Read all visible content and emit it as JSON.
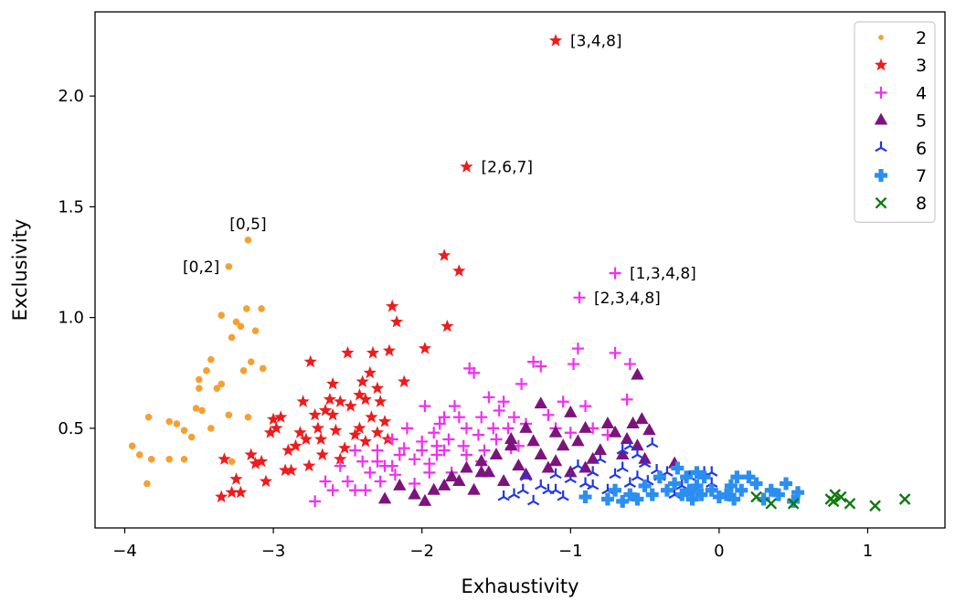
{
  "chart_data": {
    "type": "scatter",
    "xlabel": "Exhaustivity",
    "ylabel": "Exclusivity",
    "xlim": [
      -4.2,
      1.52
    ],
    "ylim": [
      0.05,
      2.38
    ],
    "x_ticks": [
      -4,
      -3,
      -2,
      -1,
      0,
      1
    ],
    "x_tick_labels": [
      "−4",
      "−3",
      "−2",
      "−1",
      "0",
      "1"
    ],
    "y_ticks": [
      0.5,
      1.0,
      1.5,
      2.0
    ],
    "y_tick_labels": [
      "0.5",
      "1.0",
      "1.5",
      "2.0"
    ],
    "grid": false,
    "legend_position": "top-right",
    "series": [
      {
        "name": "2",
        "marker": "circle",
        "color": "#f4a033",
        "points": [
          [
            -3.95,
            0.42
          ],
          [
            -3.9,
            0.38
          ],
          [
            -3.85,
            0.25
          ],
          [
            -3.82,
            0.36
          ],
          [
            -3.84,
            0.55
          ],
          [
            -3.7,
            0.36
          ],
          [
            -3.65,
            0.52
          ],
          [
            -3.6,
            0.36
          ],
          [
            -3.6,
            0.49
          ],
          [
            -3.55,
            0.46
          ],
          [
            -3.52,
            0.59
          ],
          [
            -3.5,
            0.68
          ],
          [
            -3.5,
            0.72
          ],
          [
            -3.48,
            0.58
          ],
          [
            -3.45,
            0.76
          ],
          [
            -3.42,
            0.81
          ],
          [
            -3.42,
            0.5
          ],
          [
            -3.38,
            0.68
          ],
          [
            -3.35,
            0.7
          ],
          [
            -3.35,
            1.01
          ],
          [
            -3.3,
            1.23
          ],
          [
            -3.28,
            0.91
          ],
          [
            -3.25,
            0.98
          ],
          [
            -3.22,
            0.96
          ],
          [
            -3.2,
            0.76
          ],
          [
            -3.17,
            0.55
          ],
          [
            -3.18,
            1.04
          ],
          [
            -3.15,
            0.8
          ],
          [
            -3.12,
            0.94
          ],
          [
            -3.08,
            1.04
          ],
          [
            -3.07,
            0.77
          ],
          [
            -3.17,
            1.35
          ],
          [
            -3.28,
            0.35
          ],
          [
            -3.3,
            0.56
          ],
          [
            -3.7,
            0.53
          ]
        ]
      },
      {
        "name": "3",
        "marker": "star",
        "color": "#ee1c1c",
        "points": [
          [
            -3.35,
            0.19
          ],
          [
            -3.33,
            0.36
          ],
          [
            -3.28,
            0.21
          ],
          [
            -3.25,
            0.27
          ],
          [
            -3.22,
            0.21
          ],
          [
            -3.15,
            0.38
          ],
          [
            -3.12,
            0.34
          ],
          [
            -3.08,
            0.35
          ],
          [
            -3.05,
            0.26
          ],
          [
            -3.0,
            0.54
          ],
          [
            -2.95,
            0.55
          ],
          [
            -2.92,
            0.31
          ],
          [
            -2.88,
            0.31
          ],
          [
            -2.85,
            0.42
          ],
          [
            -2.82,
            0.48
          ],
          [
            -2.8,
            0.62
          ],
          [
            -2.78,
            0.45
          ],
          [
            -2.76,
            0.33
          ],
          [
            -2.75,
            0.8
          ],
          [
            -2.72,
            0.56
          ],
          [
            -2.7,
            0.5
          ],
          [
            -2.68,
            0.45
          ],
          [
            -2.65,
            0.58
          ],
          [
            -2.62,
            0.63
          ],
          [
            -2.6,
            0.7
          ],
          [
            -2.58,
            0.49
          ],
          [
            -2.55,
            0.62
          ],
          [
            -2.52,
            0.41
          ],
          [
            -2.5,
            0.84
          ],
          [
            -2.48,
            0.6
          ],
          [
            -2.45,
            0.47
          ],
          [
            -2.42,
            0.65
          ],
          [
            -2.4,
            0.71
          ],
          [
            -2.38,
            0.44
          ],
          [
            -2.35,
            0.75
          ],
          [
            -2.33,
            0.84
          ],
          [
            -2.3,
            0.68
          ],
          [
            -2.28,
            0.62
          ],
          [
            -2.25,
            0.53
          ],
          [
            -2.22,
            0.85
          ],
          [
            -2.2,
            1.05
          ],
          [
            -2.17,
            0.98
          ],
          [
            -2.12,
            0.71
          ],
          [
            -1.98,
            0.86
          ],
          [
            -1.85,
            1.28
          ],
          [
            -1.83,
            0.96
          ],
          [
            -1.75,
            1.21
          ],
          [
            -1.7,
            1.68
          ],
          [
            -1.1,
            2.25
          ],
          [
            -2.9,
            0.4
          ],
          [
            -2.6,
            0.56
          ],
          [
            -2.67,
            0.38
          ],
          [
            -2.55,
            0.36
          ],
          [
            -2.42,
            0.5
          ],
          [
            -2.34,
            0.55
          ],
          [
            -2.3,
            0.48
          ],
          [
            -2.23,
            0.45
          ],
          [
            -2.38,
            0.63
          ],
          [
            -3.02,
            0.48
          ],
          [
            -2.98,
            0.5
          ]
        ]
      },
      {
        "name": "4",
        "marker": "plus",
        "color": "#f12ff1",
        "points": [
          [
            -2.72,
            0.17
          ],
          [
            -2.65,
            0.26
          ],
          [
            -2.6,
            0.22
          ],
          [
            -2.55,
            0.33
          ],
          [
            -2.5,
            0.26
          ],
          [
            -2.45,
            0.22
          ],
          [
            -2.4,
            0.35
          ],
          [
            -2.35,
            0.3
          ],
          [
            -2.3,
            0.4
          ],
          [
            -2.28,
            0.26
          ],
          [
            -2.25,
            0.33
          ],
          [
            -2.2,
            0.45
          ],
          [
            -2.18,
            0.29
          ],
          [
            -2.15,
            0.38
          ],
          [
            -2.12,
            0.41
          ],
          [
            -2.1,
            0.5
          ],
          [
            -2.05,
            0.36
          ],
          [
            -2.05,
            0.25
          ],
          [
            -2.0,
            0.44
          ],
          [
            -1.98,
            0.6
          ],
          [
            -1.95,
            0.34
          ],
          [
            -1.92,
            0.48
          ],
          [
            -1.9,
            0.38
          ],
          [
            -1.88,
            0.52
          ],
          [
            -1.85,
            0.4
          ],
          [
            -1.82,
            0.45
          ],
          [
            -1.8,
            0.3
          ],
          [
            -1.78,
            0.6
          ],
          [
            -1.75,
            0.55
          ],
          [
            -1.72,
            0.42
          ],
          [
            -1.7,
            0.38
          ],
          [
            -1.68,
            0.77
          ],
          [
            -1.65,
            0.75
          ],
          [
            -1.62,
            0.47
          ],
          [
            -1.6,
            0.55
          ],
          [
            -1.58,
            0.4
          ],
          [
            -1.55,
            0.64
          ],
          [
            -1.52,
            0.5
          ],
          [
            -1.5,
            0.45
          ],
          [
            -1.48,
            0.58
          ],
          [
            -1.45,
            0.62
          ],
          [
            -1.42,
            0.5
          ],
          [
            -1.4,
            0.41
          ],
          [
            -1.38,
            0.55
          ],
          [
            -1.35,
            0.42
          ],
          [
            -1.33,
            0.7
          ],
          [
            -1.3,
            0.52
          ],
          [
            -1.25,
            0.8
          ],
          [
            -1.2,
            0.78
          ],
          [
            -1.15,
            0.56
          ],
          [
            -1.1,
            0.5
          ],
          [
            -1.05,
            0.62
          ],
          [
            -1.0,
            0.48
          ],
          [
            -0.98,
            0.79
          ],
          [
            -0.95,
            0.86
          ],
          [
            -0.9,
            0.6
          ],
          [
            -0.85,
            0.5
          ],
          [
            -0.75,
            0.47
          ],
          [
            -0.7,
            0.84
          ],
          [
            -0.62,
            0.63
          ],
          [
            -0.6,
            0.79
          ],
          [
            -0.94,
            1.09
          ],
          [
            -0.7,
            1.2
          ],
          [
            -2.3,
            0.35
          ],
          [
            -2.2,
            0.33
          ],
          [
            -2.0,
            0.4
          ],
          [
            -1.9,
            0.42
          ],
          [
            -1.85,
            0.55
          ],
          [
            -1.7,
            0.5
          ],
          [
            -1.6,
            0.35
          ],
          [
            -1.95,
            0.3
          ],
          [
            -2.45,
            0.4
          ],
          [
            -2.38,
            0.22
          ]
        ]
      },
      {
        "name": "5",
        "marker": "triangle",
        "color": "#7d137d",
        "points": [
          [
            -2.25,
            0.18
          ],
          [
            -2.15,
            0.24
          ],
          [
            -2.05,
            0.2
          ],
          [
            -1.98,
            0.17
          ],
          [
            -1.92,
            0.22
          ],
          [
            -1.85,
            0.24
          ],
          [
            -1.8,
            0.28
          ],
          [
            -1.75,
            0.26
          ],
          [
            -1.7,
            0.32
          ],
          [
            -1.65,
            0.22
          ],
          [
            -1.6,
            0.35
          ],
          [
            -1.55,
            0.3
          ],
          [
            -1.5,
            0.38
          ],
          [
            -1.45,
            0.26
          ],
          [
            -1.4,
            0.42
          ],
          [
            -1.35,
            0.33
          ],
          [
            -1.3,
            0.29
          ],
          [
            -1.25,
            0.44
          ],
          [
            -1.2,
            0.38
          ],
          [
            -1.15,
            0.32
          ],
          [
            -1.1,
            0.48
          ],
          [
            -1.05,
            0.42
          ],
          [
            -1.0,
            0.3
          ],
          [
            -0.95,
            0.44
          ],
          [
            -0.9,
            0.5
          ],
          [
            -0.85,
            0.36
          ],
          [
            -0.8,
            0.4
          ],
          [
            -0.75,
            0.52
          ],
          [
            -0.7,
            0.48
          ],
          [
            -0.65,
            0.38
          ],
          [
            -0.62,
            0.45
          ],
          [
            -0.58,
            0.52
          ],
          [
            -0.55,
            0.42
          ],
          [
            -0.52,
            0.54
          ],
          [
            -0.5,
            0.36
          ],
          [
            -0.47,
            0.49
          ],
          [
            -0.55,
            0.74
          ],
          [
            -0.3,
            0.34
          ],
          [
            -1.2,
            0.61
          ],
          [
            -1.0,
            0.57
          ],
          [
            -1.3,
            0.5
          ],
          [
            -1.4,
            0.45
          ],
          [
            -1.6,
            0.3
          ],
          [
            -1.1,
            0.35
          ],
          [
            -0.9,
            0.32
          ]
        ]
      },
      {
        "name": "6",
        "marker": "tri",
        "color": "#1f37e6",
        "points": [
          [
            -1.45,
            0.19
          ],
          [
            -1.38,
            0.2
          ],
          [
            -1.32,
            0.22
          ],
          [
            -1.3,
            0.28
          ],
          [
            -1.25,
            0.17
          ],
          [
            -1.2,
            0.24
          ],
          [
            -1.15,
            0.22
          ],
          [
            -1.1,
            0.29
          ],
          [
            -1.05,
            0.19
          ],
          [
            -1.0,
            0.27
          ],
          [
            -0.95,
            0.33
          ],
          [
            -0.9,
            0.25
          ],
          [
            -0.85,
            0.3
          ],
          [
            -0.8,
            0.36
          ],
          [
            -0.75,
            0.22
          ],
          [
            -0.7,
            0.29
          ],
          [
            -0.65,
            0.32
          ],
          [
            -0.6,
            0.25
          ],
          [
            -0.55,
            0.38
          ],
          [
            -0.5,
            0.34
          ],
          [
            -0.48,
            0.26
          ],
          [
            -0.45,
            0.43
          ],
          [
            -0.42,
            0.31
          ],
          [
            -0.4,
            0.28
          ],
          [
            -0.35,
            0.3
          ],
          [
            -0.3,
            0.2
          ],
          [
            -0.25,
            0.24
          ],
          [
            -0.2,
            0.28
          ],
          [
            -0.15,
            0.22
          ],
          [
            -0.1,
            0.3
          ],
          [
            -0.05,
            0.25
          ],
          [
            -0.05,
            0.3
          ],
          [
            -0.65,
            0.4
          ],
          [
            -0.55,
            0.28
          ],
          [
            -0.6,
            0.42
          ],
          [
            -0.85,
            0.24
          ],
          [
            -1.1,
            0.22
          ]
        ]
      },
      {
        "name": "7",
        "marker": "pluswide",
        "color": "#2b8ff1",
        "points": [
          [
            -0.75,
            0.18
          ],
          [
            -0.7,
            0.22
          ],
          [
            -0.65,
            0.17
          ],
          [
            -0.6,
            0.2
          ],
          [
            -0.55,
            0.18
          ],
          [
            -0.5,
            0.24
          ],
          [
            -0.45,
            0.2
          ],
          [
            -0.4,
            0.28
          ],
          [
            -0.35,
            0.22
          ],
          [
            -0.3,
            0.25
          ],
          [
            -0.28,
            0.32
          ],
          [
            -0.25,
            0.2
          ],
          [
            -0.22,
            0.28
          ],
          [
            -0.2,
            0.22
          ],
          [
            -0.18,
            0.18
          ],
          [
            -0.15,
            0.24
          ],
          [
            -0.12,
            0.2
          ],
          [
            -0.1,
            0.28
          ],
          [
            -0.05,
            0.22
          ],
          [
            0.0,
            0.19
          ],
          [
            0.05,
            0.2
          ],
          [
            0.08,
            0.24
          ],
          [
            0.1,
            0.18
          ],
          [
            0.15,
            0.22
          ],
          [
            0.2,
            0.28
          ],
          [
            0.25,
            0.25
          ],
          [
            0.3,
            0.18
          ],
          [
            0.35,
            0.22
          ],
          [
            0.4,
            0.2
          ],
          [
            0.45,
            0.25
          ],
          [
            0.5,
            0.17
          ],
          [
            0.53,
            0.21
          ],
          [
            -0.9,
            0.19
          ],
          [
            -0.15,
            0.3
          ],
          [
            0.12,
            0.28
          ]
        ]
      },
      {
        "name": "8",
        "marker": "x",
        "color": "#107a10",
        "points": [
          [
            0.25,
            0.19
          ],
          [
            0.35,
            0.16
          ],
          [
            0.5,
            0.16
          ],
          [
            0.75,
            0.18
          ],
          [
            0.78,
            0.2
          ],
          [
            0.82,
            0.19
          ],
          [
            0.88,
            0.16
          ],
          [
            1.05,
            0.15
          ],
          [
            1.25,
            0.18
          ],
          [
            0.77,
            0.17
          ]
        ]
      }
    ],
    "annotations": [
      {
        "text": "[3,4,8]",
        "x": -1.1,
        "y": 2.25
      },
      {
        "text": "[2,6,7]",
        "x": -1.7,
        "y": 1.68
      },
      {
        "text": "[0,5]",
        "x": -3.17,
        "y": 1.35
      },
      {
        "text": "[0,2]",
        "x": -3.3,
        "y": 1.23
      },
      {
        "text": "[1,3,4,8]",
        "x": -0.7,
        "y": 1.2
      },
      {
        "text": "[2,3,4,8]",
        "x": -0.94,
        "y": 1.09
      }
    ]
  }
}
